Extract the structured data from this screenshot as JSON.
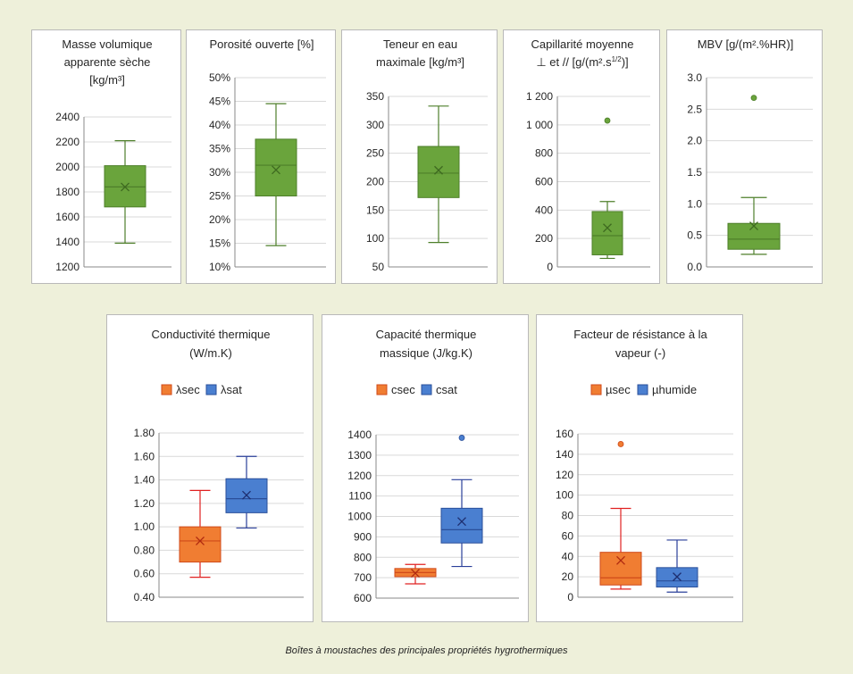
{
  "caption": "Boîtes à moustaches des principales propriétés hygrothermiques",
  "colors": {
    "green_fill": "#6aa43c",
    "green_stroke": "#4e7f2a",
    "orange_fill": "#f07d32",
    "orange_stroke": "#d04a1a",
    "orange_whisker": "#e02020",
    "blue_fill": "#4a7fd0",
    "blue_stroke": "#2a4f9a",
    "blue_whisker": "#2a3f9a",
    "grid": "#d9d9d9",
    "axis": "#888888",
    "text": "#262626"
  },
  "chart_data": [
    {
      "type": "boxplot",
      "title": [
        "Masse volumique",
        "apparente sèche",
        "[kg/m³]"
      ],
      "ylim": [
        1200,
        2400
      ],
      "yticks": [
        1200,
        1400,
        1600,
        1800,
        2000,
        2200,
        2400
      ],
      "tick_format": "plain",
      "legend": [],
      "series": [
        {
          "min": 1390,
          "q1": 1680,
          "median": 1840,
          "q3": 2010,
          "max": 2210,
          "mean": 1840,
          "outliers": [],
          "color": "green"
        }
      ]
    },
    {
      "type": "boxplot",
      "title": [
        "Porosité ouverte [%]"
      ],
      "ylim": [
        10,
        50
      ],
      "yticks": [
        10,
        15,
        20,
        25,
        30,
        35,
        40,
        45,
        50
      ],
      "tick_format": "percent",
      "legend": [],
      "series": [
        {
          "min": 14.5,
          "q1": 25,
          "median": 31.5,
          "q3": 37,
          "max": 44.5,
          "mean": 30.5,
          "outliers": [],
          "color": "green"
        }
      ]
    },
    {
      "type": "boxplot",
      "title": [
        "Teneur en eau",
        "maximale [kg/m³]"
      ],
      "ylim": [
        50,
        350
      ],
      "yticks": [
        50,
        100,
        150,
        200,
        250,
        300,
        350
      ],
      "tick_format": "plain",
      "legend": [],
      "series": [
        {
          "min": 93,
          "q1": 172,
          "median": 215,
          "q3": 262,
          "max": 333,
          "mean": 220,
          "outliers": [],
          "color": "green"
        }
      ]
    },
    {
      "type": "boxplot",
      "title": [
        "Capillarité moyenne",
        "⊥ et // [g/(m².s^1/2)]"
      ],
      "ylim": [
        0,
        1200
      ],
      "yticks": [
        0,
        200,
        400,
        600,
        800,
        1000,
        1200
      ],
      "tick_format": "space",
      "legend": [],
      "series": [
        {
          "min": 60,
          "q1": 85,
          "median": 220,
          "q3": 390,
          "max": 460,
          "mean": 275,
          "outliers": [
            1030
          ],
          "color": "green"
        }
      ]
    },
    {
      "type": "boxplot",
      "title": [
        "MBV [g/(m².%HR)]"
      ],
      "ylim": [
        0,
        3
      ],
      "yticks": [
        0,
        0.5,
        1,
        1.5,
        2,
        2.5,
        3
      ],
      "tick_format": "1dp",
      "legend": [],
      "series": [
        {
          "min": 0.2,
          "q1": 0.28,
          "median": 0.44,
          "q3": 0.69,
          "max": 1.1,
          "mean": 0.65,
          "outliers": [
            2.68
          ],
          "color": "green"
        }
      ]
    },
    {
      "type": "boxplot",
      "title": [
        "Conductivité thermique",
        "(W/m.K)"
      ],
      "ylim": [
        0.4,
        1.8
      ],
      "yticks": [
        0.4,
        0.6,
        0.8,
        1.0,
        1.2,
        1.4,
        1.6,
        1.8
      ],
      "tick_format": "2dp",
      "legend": [
        "λsec",
        "λsat"
      ],
      "series": [
        {
          "name": "λsec",
          "min": 0.57,
          "q1": 0.7,
          "median": 0.88,
          "q3": 1.0,
          "max": 1.31,
          "mean": 0.88,
          "outliers": [],
          "color": "orange"
        },
        {
          "name": "λsat",
          "min": 0.99,
          "q1": 1.12,
          "median": 1.24,
          "q3": 1.41,
          "max": 1.6,
          "mean": 1.27,
          "outliers": [],
          "color": "blue"
        }
      ]
    },
    {
      "type": "boxplot",
      "title": [
        "Capacité thermique",
        "massique (J/kg.K)"
      ],
      "ylim": [
        600,
        1400
      ],
      "yticks": [
        600,
        700,
        800,
        900,
        1000,
        1100,
        1200,
        1300,
        1400
      ],
      "tick_format": "plain",
      "legend": [
        "csec",
        "csat"
      ],
      "series": [
        {
          "name": "csec",
          "min": 670,
          "q1": 705,
          "median": 725,
          "q3": 745,
          "max": 765,
          "mean": 722,
          "outliers": [],
          "color": "orange"
        },
        {
          "name": "csat",
          "min": 755,
          "q1": 870,
          "median": 935,
          "q3": 1040,
          "max": 1180,
          "mean": 975,
          "outliers": [
            1385
          ],
          "color": "blue"
        }
      ]
    },
    {
      "type": "boxplot",
      "title": [
        "Facteur de résistance à la",
        "vapeur (-)"
      ],
      "ylim": [
        0,
        160
      ],
      "yticks": [
        0,
        20,
        40,
        60,
        80,
        100,
        120,
        140,
        160
      ],
      "tick_format": "plain",
      "legend": [
        "µsec",
        "µhumide"
      ],
      "series": [
        {
          "name": "µsec",
          "min": 8,
          "q1": 12,
          "median": 19,
          "q3": 44,
          "max": 87,
          "mean": 36,
          "outliers": [
            150
          ],
          "color": "orange"
        },
        {
          "name": "µhumide",
          "min": 5,
          "q1": 10,
          "median": 16,
          "q3": 29,
          "max": 56,
          "mean": 20,
          "outliers": [],
          "color": "blue"
        }
      ]
    }
  ]
}
